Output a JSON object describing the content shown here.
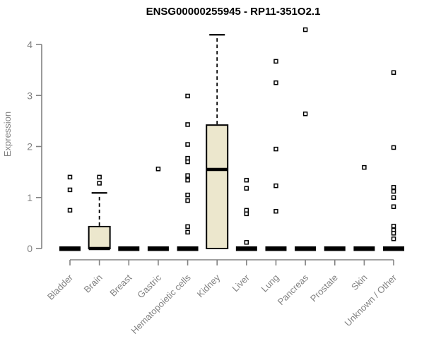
{
  "chart_data": {
    "type": "box",
    "title": "ENSG00000255945 - RP11-351O2.1",
    "ylabel": "Expression",
    "xlabel": "",
    "ylim": [
      0,
      4.35
    ],
    "yticks": [
      0,
      1,
      2,
      3,
      4
    ],
    "grid": false,
    "legend": false,
    "x_label_rotation_deg": 45,
    "colors": {
      "box_fill": "#ECE7CD",
      "box_stroke": "#000000",
      "axis": "#828282",
      "title": "#000000",
      "background": "#FFFFFF"
    },
    "boxes": [
      {
        "label": "Bladder",
        "q1": 0,
        "median": 0,
        "q3": 0,
        "whisker_low": 0,
        "whisker_high": 0,
        "outliers": [
          1.4,
          1.15,
          0.75
        ]
      },
      {
        "label": "Brain",
        "q1": 0,
        "median": 0,
        "q3": 0.43,
        "whisker_low": 0,
        "whisker_high": 1.09,
        "outliers": [
          1.4,
          1.28
        ]
      },
      {
        "label": "Breast",
        "q1": 0,
        "median": 0,
        "q3": 0,
        "whisker_low": 0,
        "whisker_high": 0,
        "outliers": []
      },
      {
        "label": "Gastric",
        "q1": 0,
        "median": 0,
        "q3": 0,
        "whisker_low": 0,
        "whisker_high": 0,
        "outliers": [
          1.56
        ]
      },
      {
        "label": "Hematopoietic cells",
        "q1": 0,
        "median": 0,
        "q3": 0,
        "whisker_low": 0,
        "whisker_high": 0,
        "outliers": [
          2.99,
          2.43,
          2.04,
          1.77,
          1.7,
          1.43,
          1.34,
          1.05,
          0.94,
          0.43,
          0.32
        ]
      },
      {
        "label": "Kidney",
        "q1": 0,
        "median": 1.55,
        "q3": 2.42,
        "whisker_low": 0,
        "whisker_high": 4.19,
        "outliers": []
      },
      {
        "label": "Liver",
        "q1": 0,
        "median": 0,
        "q3": 0,
        "whisker_low": 0,
        "whisker_high": 0,
        "outliers": [
          1.34,
          1.18,
          0.75,
          0.68,
          0.12
        ]
      },
      {
        "label": "Lung",
        "q1": 0,
        "median": 0,
        "q3": 0,
        "whisker_low": 0,
        "whisker_high": 0,
        "outliers": [
          3.67,
          3.25,
          1.95,
          1.23,
          0.73
        ]
      },
      {
        "label": "Pancreas",
        "q1": 0,
        "median": 0,
        "q3": 0,
        "whisker_low": 0,
        "whisker_high": 0,
        "outliers": [
          4.29,
          2.64
        ]
      },
      {
        "label": "Prostate",
        "q1": 0,
        "median": 0,
        "q3": 0,
        "whisker_low": 0,
        "whisker_high": 0,
        "outliers": []
      },
      {
        "label": "Skin",
        "q1": 0,
        "median": 0,
        "q3": 0,
        "whisker_low": 0,
        "whisker_high": 0,
        "outliers": [
          1.59
        ]
      },
      {
        "label": "Unknown / Other",
        "q1": 0,
        "median": 0,
        "q3": 0,
        "whisker_low": 0,
        "whisker_high": 0,
        "outliers": [
          3.45,
          1.98,
          1.2,
          1.12,
          1.0,
          0.82,
          0.44,
          0.36,
          0.3,
          0.19
        ]
      }
    ]
  }
}
